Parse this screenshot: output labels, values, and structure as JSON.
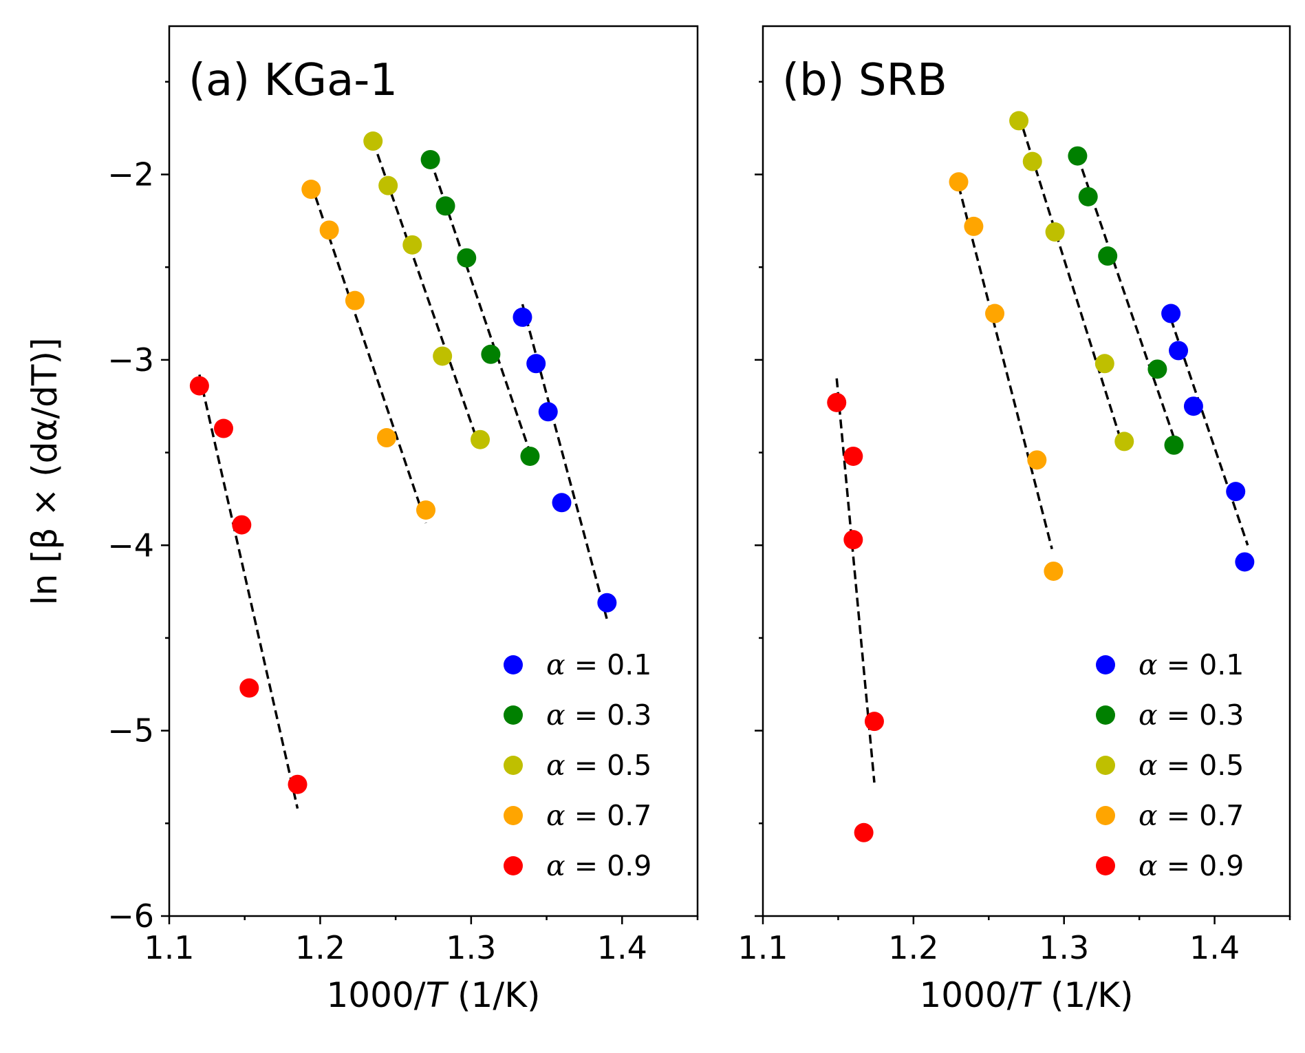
{
  "ylabel": "ln [β × (dα/dT)]",
  "colors": {
    "0.1": "#0000ff",
    "0.3": "#008000",
    "0.5": "#bfbf00",
    "0.7": "#ffa500",
    "0.9": "#ff0000",
    "fit": "#000000"
  },
  "chart_data": [
    {
      "type": "scatter",
      "title": "(a) KGa-1",
      "xlabel": "1000/T (1/K)",
      "ylabel": "ln [β × (dα/dT)]",
      "xlim": [
        1.1,
        1.45
      ],
      "ylim": [
        -6,
        -1.2
      ],
      "xticks": [
        1.1,
        1.2,
        1.3,
        1.4
      ],
      "yticks": [
        -6,
        -5,
        -4,
        -3,
        -2
      ],
      "legend_position": "bottom-right",
      "series": [
        {
          "name": "α = 0.1",
          "alpha": "0.1",
          "x": [
            1.334,
            1.343,
            1.351,
            1.36,
            1.39
          ],
          "y": [
            -2.77,
            -3.02,
            -3.28,
            -3.77,
            -4.31
          ],
          "fit": {
            "x": [
              1.334,
              1.39
            ],
            "y": [
              -2.7,
              -4.4
            ]
          }
        },
        {
          "name": "α = 0.3",
          "alpha": "0.3",
          "x": [
            1.273,
            1.283,
            1.297,
            1.313,
            1.339
          ],
          "y": [
            -1.92,
            -2.17,
            -2.45,
            -2.97,
            -3.52
          ],
          "fit": {
            "x": [
              1.273,
              1.339
            ],
            "y": [
              -1.92,
              -3.5
            ]
          }
        },
        {
          "name": "α = 0.5",
          "alpha": "0.5",
          "x": [
            1.235,
            1.245,
            1.261,
            1.281,
            1.306
          ],
          "y": [
            -1.82,
            -2.06,
            -2.38,
            -2.98,
            -3.43
          ],
          "fit": {
            "x": [
              1.235,
              1.306
            ],
            "y": [
              -1.82,
              -3.48
            ]
          }
        },
        {
          "name": "α = 0.7",
          "alpha": "0.7",
          "x": [
            1.194,
            1.206,
            1.223,
            1.244,
            1.27
          ],
          "y": [
            -2.08,
            -2.3,
            -2.68,
            -3.42,
            -3.81
          ],
          "fit": {
            "x": [
              1.194,
              1.27
            ],
            "y": [
              -2.05,
              -3.88
            ]
          }
        },
        {
          "name": "α = 0.9",
          "alpha": "0.9",
          "x": [
            1.12,
            1.136,
            1.148,
            1.153,
            1.185
          ],
          "y": [
            -3.14,
            -3.37,
            -3.89,
            -4.77,
            -5.29
          ],
          "fit": {
            "x": [
              1.12,
              1.185
            ],
            "y": [
              -3.08,
              -5.42
            ]
          }
        }
      ]
    },
    {
      "type": "scatter",
      "title": "(b) SRB",
      "xlabel": "1000/T (1/K)",
      "ylabel": "",
      "xlim": [
        1.1,
        1.45
      ],
      "ylim": [
        -6,
        -1.2
      ],
      "xticks": [
        1.1,
        1.2,
        1.3,
        1.4
      ],
      "yticks": [
        -6,
        -5,
        -4,
        -3,
        -2
      ],
      "legend_position": "bottom-right",
      "series": [
        {
          "name": "α = 0.1",
          "alpha": "0.1",
          "x": [
            1.371,
            1.376,
            1.386,
            1.414,
            1.42
          ],
          "y": [
            -2.75,
            -2.95,
            -3.25,
            -3.71,
            -4.09
          ],
          "fit": {
            "x": [
              1.371,
              1.422
            ],
            "y": [
              -2.78,
              -4.0
            ]
          }
        },
        {
          "name": "α = 0.3",
          "alpha": "0.3",
          "x": [
            1.309,
            1.316,
            1.329,
            1.362,
            1.373
          ],
          "y": [
            -1.9,
            -2.12,
            -2.44,
            -3.05,
            -3.46
          ],
          "fit": {
            "x": [
              1.309,
              1.373
            ],
            "y": [
              -1.9,
              -3.42
            ]
          }
        },
        {
          "name": "α = 0.5",
          "alpha": "0.5",
          "x": [
            1.27,
            1.279,
            1.294,
            1.327,
            1.34
          ],
          "y": [
            -1.71,
            -1.93,
            -2.31,
            -3.02,
            -3.44
          ],
          "fit": {
            "x": [
              1.27,
              1.338
            ],
            "y": [
              -1.68,
              -3.44
            ]
          }
        },
        {
          "name": "α = 0.7",
          "alpha": "0.7",
          "x": [
            1.23,
            1.24,
            1.254,
            1.282,
            1.293
          ],
          "y": [
            -2.04,
            -2.28,
            -2.75,
            -3.54,
            -4.14
          ],
          "fit": {
            "x": [
              1.23,
              1.292
            ],
            "y": [
              -2.06,
              -4.02
            ]
          }
        },
        {
          "name": "α = 0.9",
          "alpha": "0.9",
          "x": [
            1.149,
            1.16,
            1.16,
            1.174,
            1.167
          ],
          "y": [
            -3.23,
            -3.52,
            -3.97,
            -4.95,
            -5.55
          ],
          "fit": {
            "x": [
              1.149,
              1.174
            ],
            "y": [
              -3.1,
              -5.28
            ]
          }
        }
      ]
    }
  ]
}
